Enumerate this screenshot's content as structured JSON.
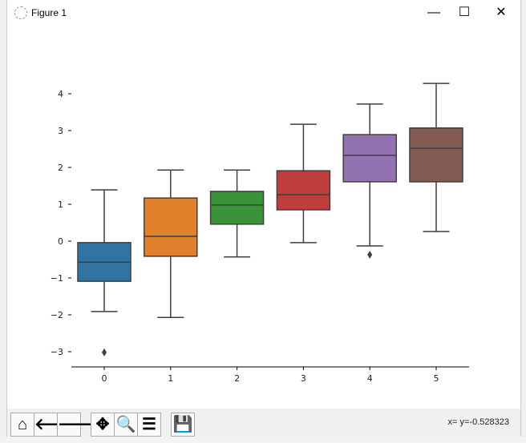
{
  "window": {
    "title": "Figure 1",
    "minimize_icon": "minimize-icon",
    "maximize_icon": "maximize-icon",
    "close_icon": "close-icon"
  },
  "toolbar": {
    "buttons": [
      {
        "name": "home",
        "glyph": "⌂"
      },
      {
        "name": "back",
        "glyph": "🡐"
      },
      {
        "name": "forward",
        "glyph": "🡒"
      },
      {
        "name": "pan",
        "glyph": "✥"
      },
      {
        "name": "zoom",
        "glyph": "🔍"
      },
      {
        "name": "configure",
        "glyph": "☰"
      },
      {
        "name": "save",
        "glyph": "💾"
      }
    ],
    "status": "x= y=-0.528323"
  },
  "chart_data": {
    "type": "box",
    "categories": [
      "0",
      "1",
      "2",
      "3",
      "4",
      "5"
    ],
    "colors": [
      "#3274a1",
      "#e1812c",
      "#3a923a",
      "#c03d3e",
      "#9372b2",
      "#845b53"
    ],
    "boxes": [
      {
        "whislo": -1.91,
        "q1": -1.09,
        "med": -0.57,
        "q3": -0.04,
        "whishi": 1.39,
        "fliers": [
          -3.02
        ]
      },
      {
        "whislo": -2.07,
        "q1": -0.41,
        "med": 0.13,
        "q3": 1.17,
        "whishi": 1.93,
        "fliers": []
      },
      {
        "whislo": -0.43,
        "q1": 0.46,
        "med": 0.98,
        "q3": 1.35,
        "whishi": 1.93,
        "fliers": []
      },
      {
        "whislo": -0.04,
        "q1": 0.85,
        "med": 1.26,
        "q3": 1.91,
        "whishi": 3.17,
        "fliers": []
      },
      {
        "whislo": -0.13,
        "q1": 1.61,
        "med": 2.33,
        "q3": 2.89,
        "whishi": 3.72,
        "fliers": [
          -0.37
        ]
      },
      {
        "whislo": 0.26,
        "q1": 1.61,
        "med": 2.52,
        "q3": 3.07,
        "whishi": 4.28,
        "fliers": []
      }
    ],
    "yticks": [
      "4",
      "3",
      "2",
      "1",
      "0",
      "−1",
      "−2",
      "−3"
    ],
    "ytick_values": [
      4,
      3,
      2,
      1,
      0,
      -1,
      -2,
      -3
    ],
    "ylim": [
      -3.4,
      4.5
    ],
    "grid": false
  }
}
